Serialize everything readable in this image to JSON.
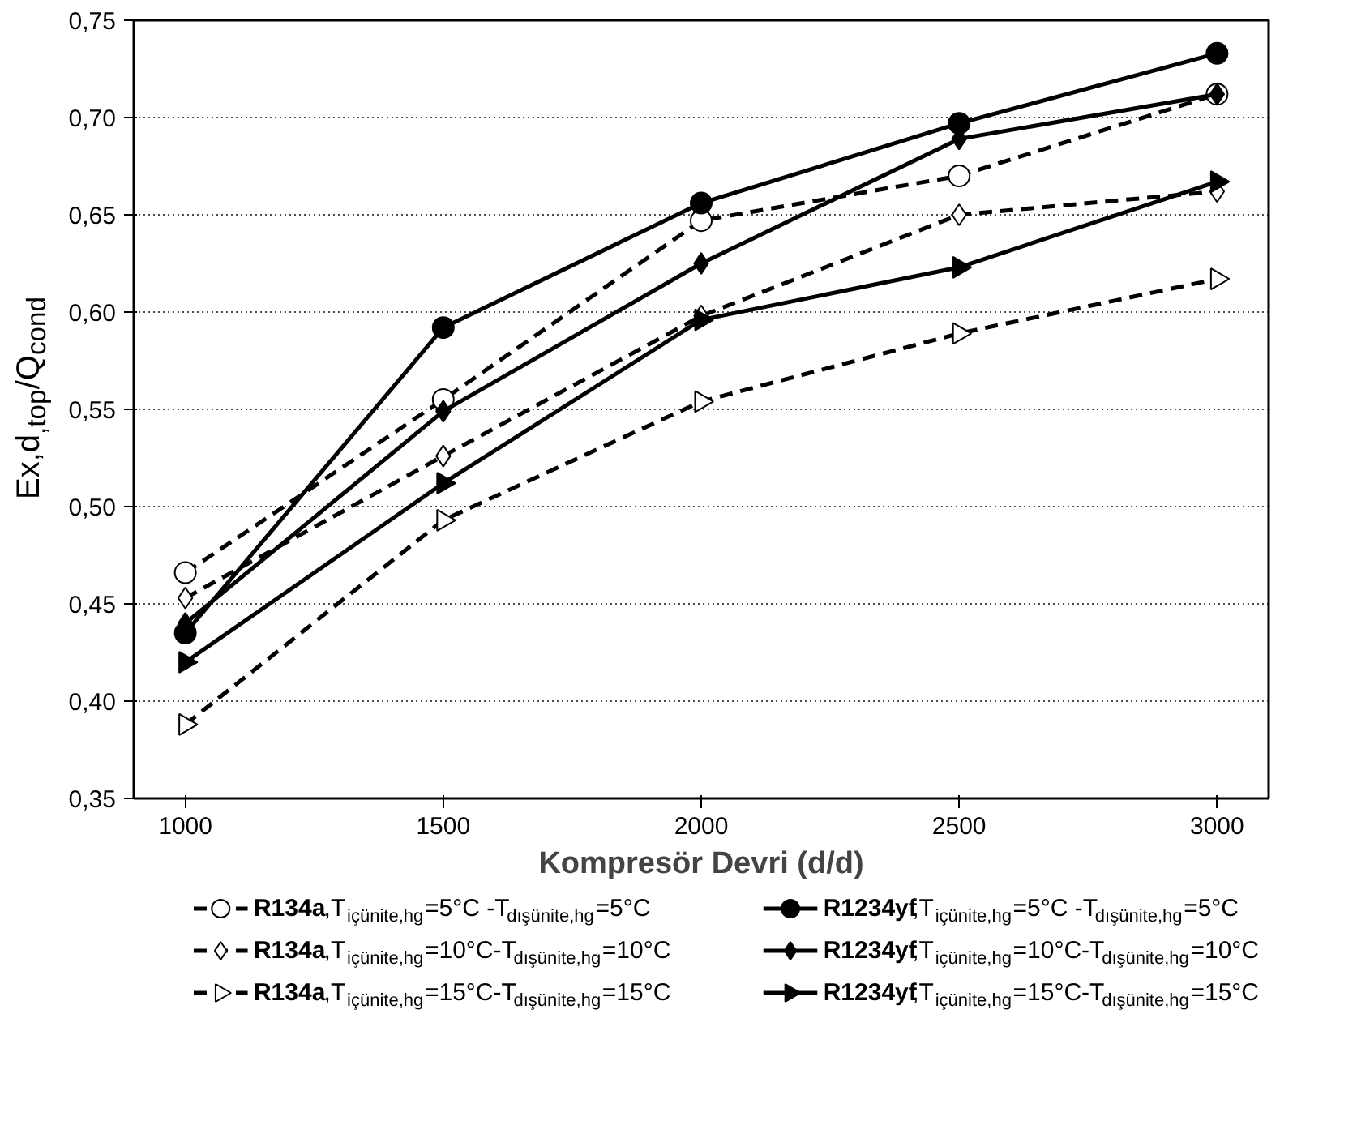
{
  "chart_data": {
    "type": "line",
    "xlabel": "Kompresör Devri (d/d)",
    "ylabel": "Ex,d$_{,top}$/Q$_{cond}$",
    "x": [
      1000,
      1500,
      2000,
      2500,
      3000
    ],
    "xlim": [
      900,
      3100
    ],
    "xticks": [
      1000,
      1500,
      2000,
      2500,
      3000
    ],
    "ylim": [
      0.35,
      0.75
    ],
    "yticks": [
      {
        "value": 0.35,
        "label": "0,35"
      },
      {
        "value": 0.4,
        "label": "0,40"
      },
      {
        "value": 0.45,
        "label": "0,45"
      },
      {
        "value": 0.5,
        "label": "0,50"
      },
      {
        "value": 0.55,
        "label": "0,55"
      },
      {
        "value": 0.6,
        "label": "0,60"
      },
      {
        "value": 0.65,
        "label": "0,65"
      },
      {
        "value": 0.7,
        "label": "0,70"
      },
      {
        "value": 0.75,
        "label": "0,75"
      }
    ],
    "grid": "y",
    "legend": "bottom",
    "series": [
      {
        "name": "R134a,T$_{içünite,hg}$=5°C -T$_{dışünite,hg}$=5°C",
        "color": "#000000",
        "marker": "circle",
        "line_style": "dashed",
        "values": [
          0.466,
          0.555,
          0.647,
          0.67,
          0.712
        ]
      },
      {
        "name": "R1234yf,T$_{içünite,hg}$=5°C -T$_{dışünite,hg}$=5°C",
        "color": "#000000",
        "marker": "circle",
        "line_style": "solid",
        "values": [
          0.435,
          0.592,
          0.656,
          0.697,
          0.733
        ]
      },
      {
        "name": "R134a,T$_{içünite,hg}$=10°C-T$_{dışünite,hg}$=10°C",
        "color": "#000000",
        "marker": "diamond",
        "line_style": "dashed",
        "values": [
          0.453,
          0.526,
          0.598,
          0.65,
          0.662
        ]
      },
      {
        "name": "R1234yf,T$_{içünite,hg}$=10°C-T$_{dışünite,hg}$=10°C",
        "color": "#000000",
        "marker": "diamond",
        "line_style": "solid",
        "values": [
          0.44,
          0.549,
          0.625,
          0.689,
          0.712
        ]
      },
      {
        "name": "R134a,T$_{içünite,hg}$=15°C-T$_{dışünite,hg}$=15°C",
        "color": "#000000",
        "marker": "triangle",
        "line_style": "dashed",
        "values": [
          0.388,
          0.493,
          0.554,
          0.589,
          0.617
        ]
      },
      {
        "name": "R1234yf,T$_{içünite,hg}$=15°C-T$_{dışünite,hg}$=15°C",
        "color": "#000000",
        "marker": "triangle",
        "line_style": "solid",
        "values": [
          0.42,
          0.512,
          0.596,
          0.623,
          0.667
        ]
      }
    ]
  }
}
